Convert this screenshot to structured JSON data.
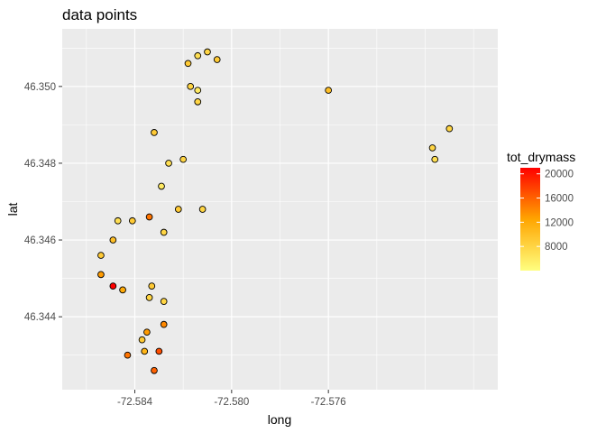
{
  "chart_data": {
    "type": "scatter",
    "title": "data points",
    "xlabel": "long",
    "ylabel": "lat",
    "xlim": [
      -72.587,
      -72.569
    ],
    "ylim": [
      46.3421,
      46.3515
    ],
    "x_ticks": [
      -72.584,
      -72.58,
      -72.576
    ],
    "x_tick_labels": [
      "-72.584",
      "-72.580",
      "-72.576"
    ],
    "y_ticks": [
      46.344,
      46.346,
      46.348,
      46.35
    ],
    "y_tick_labels": [
      "46.344",
      "46.346",
      "46.348",
      "46.350"
    ],
    "grid": true,
    "legend": {
      "title": "tot_drymass",
      "position": "right",
      "type": "colorbar",
      "range": [
        4000,
        21000
      ],
      "breaks": [
        8000,
        12000,
        16000,
        20000
      ],
      "break_labels": [
        "8000",
        "12000",
        "16000",
        "20000"
      ],
      "low_color": "#ffff80",
      "mid_color": "#ffa500",
      "high_color": "#ff0000"
    },
    "points": [
      {
        "x": -72.5854,
        "y": 46.3456,
        "c": 9000
      },
      {
        "x": -72.5854,
        "y": 46.3451,
        "c": 13000
      },
      {
        "x": -72.5849,
        "y": 46.346,
        "c": 10000
      },
      {
        "x": -72.5847,
        "y": 46.3465,
        "c": 7000
      },
      {
        "x": -72.5849,
        "y": 46.3448,
        "c": 21000
      },
      {
        "x": -72.5845,
        "y": 46.3447,
        "c": 12000
      },
      {
        "x": -72.5843,
        "y": 46.343,
        "c": 15000
      },
      {
        "x": -72.5841,
        "y": 46.3465,
        "c": 9000
      },
      {
        "x": -72.5837,
        "y": 46.3434,
        "c": 9000
      },
      {
        "x": -72.5836,
        "y": 46.3431,
        "c": 11000
      },
      {
        "x": -72.5835,
        "y": 46.3436,
        "c": 13000
      },
      {
        "x": -72.5834,
        "y": 46.3466,
        "c": 15000
      },
      {
        "x": -72.5834,
        "y": 46.3445,
        "c": 8000
      },
      {
        "x": -72.5833,
        "y": 46.3448,
        "c": 9000
      },
      {
        "x": -72.5832,
        "y": 46.3426,
        "c": 16000
      },
      {
        "x": -72.5832,
        "y": 46.3488,
        "c": 9000
      },
      {
        "x": -72.583,
        "y": 46.3431,
        "c": 17000
      },
      {
        "x": -72.5829,
        "y": 46.3474,
        "c": 6000
      },
      {
        "x": -72.5828,
        "y": 46.3462,
        "c": 8000
      },
      {
        "x": -72.5828,
        "y": 46.3438,
        "c": 14000
      },
      {
        "x": -72.5828,
        "y": 46.3444,
        "c": 8000
      },
      {
        "x": -72.5826,
        "y": 46.348,
        "c": 7000
      },
      {
        "x": -72.5822,
        "y": 46.3468,
        "c": 9000
      },
      {
        "x": -72.582,
        "y": 46.3481,
        "c": 8000
      },
      {
        "x": -72.5818,
        "y": 46.3506,
        "c": 9000
      },
      {
        "x": -72.5817,
        "y": 46.35,
        "c": 8000
      },
      {
        "x": -72.5814,
        "y": 46.3508,
        "c": 7000
      },
      {
        "x": -72.5814,
        "y": 46.3499,
        "c": 6000
      },
      {
        "x": -72.5814,
        "y": 46.3496,
        "c": 8000
      },
      {
        "x": -72.5812,
        "y": 46.3468,
        "c": 8000
      },
      {
        "x": -72.581,
        "y": 46.3509,
        "c": 8000
      },
      {
        "x": -72.5806,
        "y": 46.3507,
        "c": 9000
      },
      {
        "x": -72.576,
        "y": 46.3499,
        "c": 10000
      },
      {
        "x": -72.5717,
        "y": 46.3484,
        "c": 8000
      },
      {
        "x": -72.5716,
        "y": 46.3481,
        "c": 7000
      },
      {
        "x": -72.571,
        "y": 46.3489,
        "c": 8000
      }
    ]
  }
}
